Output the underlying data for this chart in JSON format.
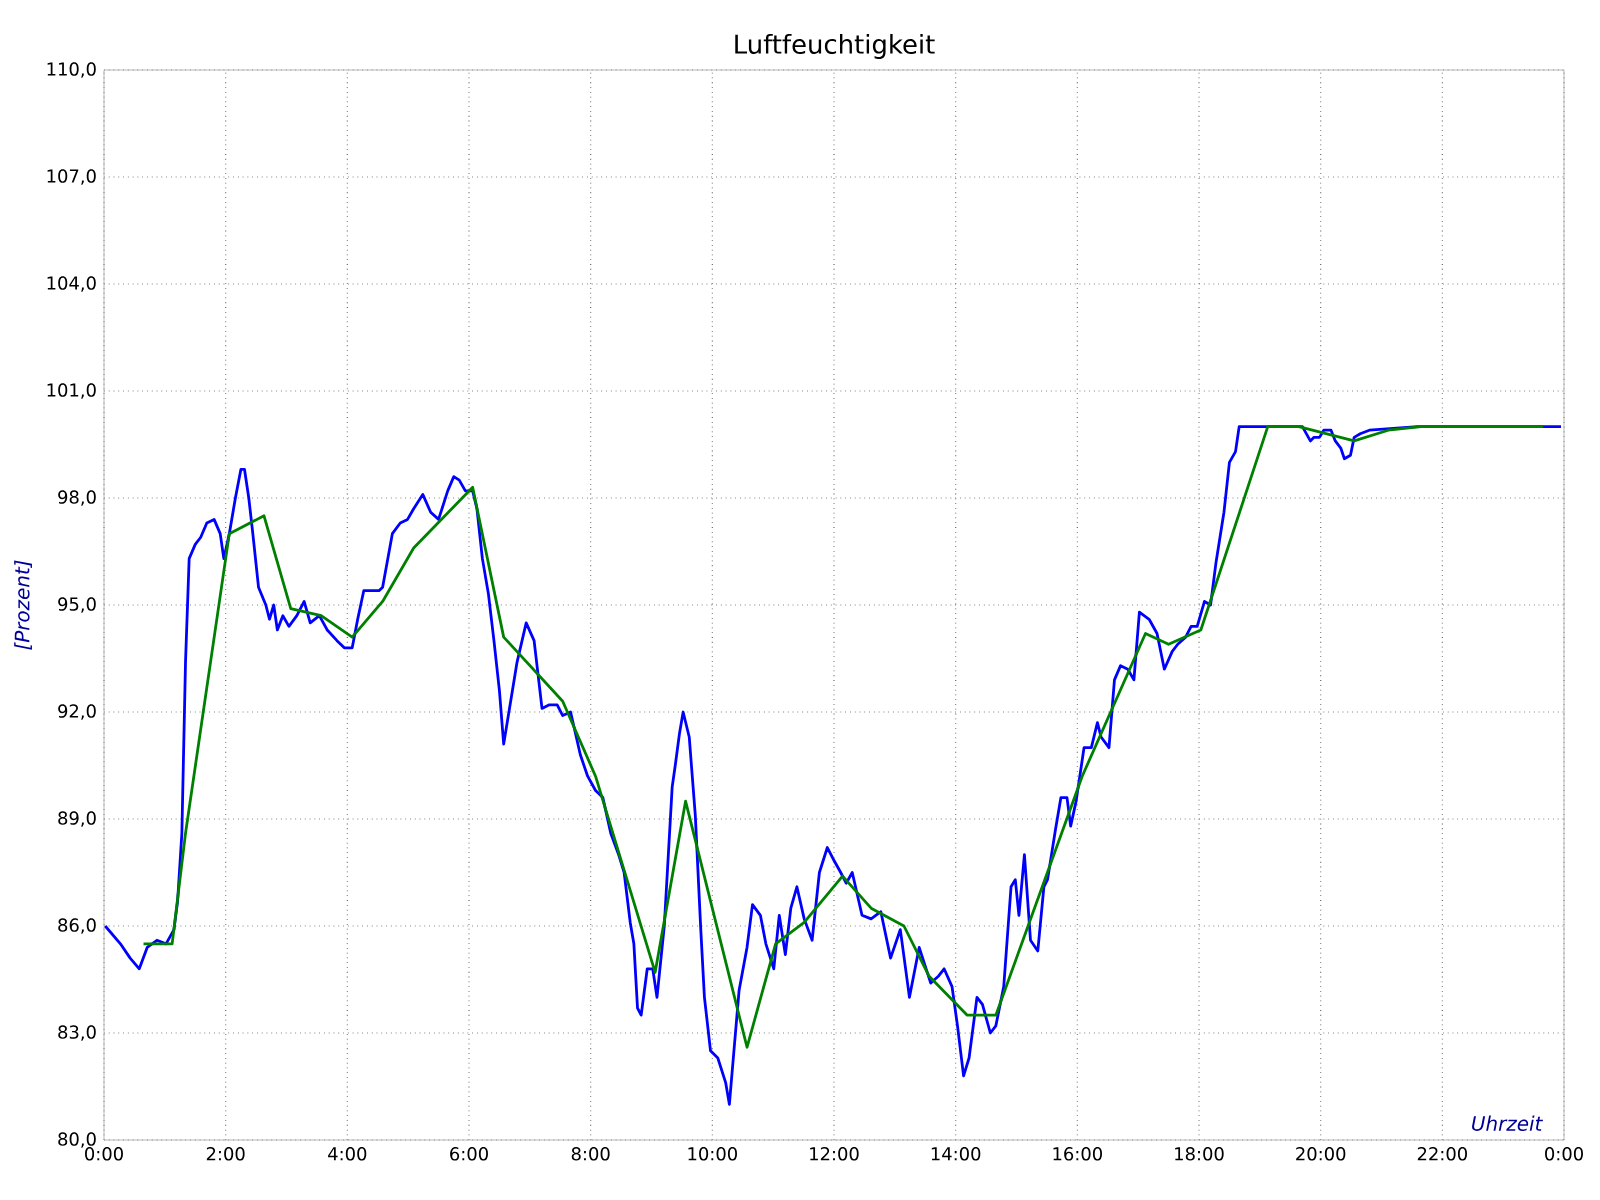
{
  "chart_data": {
    "type": "line",
    "title": "Luftfeuchtigkeit",
    "xlabel": "Uhrzeit",
    "ylabel": "[Prozent]",
    "xlim": [
      0,
      24
    ],
    "ylim": [
      80,
      110
    ],
    "xticks": [
      {
        "value": 0,
        "label": "0:00"
      },
      {
        "value": 2,
        "label": "2:00"
      },
      {
        "value": 4,
        "label": "4:00"
      },
      {
        "value": 6,
        "label": "6:00"
      },
      {
        "value": 8,
        "label": "8:00"
      },
      {
        "value": 10,
        "label": "10:00"
      },
      {
        "value": 12,
        "label": "12:00"
      },
      {
        "value": 14,
        "label": "14:00"
      },
      {
        "value": 16,
        "label": "16:00"
      },
      {
        "value": 18,
        "label": "18:00"
      },
      {
        "value": 20,
        "label": "20:00"
      },
      {
        "value": 22,
        "label": "22:00"
      },
      {
        "value": 24,
        "label": "0:00"
      }
    ],
    "yticks": [
      {
        "value": 80,
        "label": "80,0"
      },
      {
        "value": 83,
        "label": "83,0"
      },
      {
        "value": 86,
        "label": "86,0"
      },
      {
        "value": 89,
        "label": "89,0"
      },
      {
        "value": 92,
        "label": "92,0"
      },
      {
        "value": 95,
        "label": "95,0"
      },
      {
        "value": 98,
        "label": "98,0"
      },
      {
        "value": 101,
        "label": "101,0"
      },
      {
        "value": 104,
        "label": "104,0"
      },
      {
        "value": 107,
        "label": "107,0"
      },
      {
        "value": 110,
        "label": "110,0"
      }
    ],
    "grid": true,
    "marker": "none",
    "line_style": "solid",
    "series": [
      {
        "color": "#0000ff",
        "x": [
          0.02,
          0.27,
          0.43,
          0.58,
          0.71,
          0.87,
          1.02,
          1.15,
          1.21,
          1.28,
          1.34,
          1.4,
          1.5,
          1.59,
          1.69,
          1.81,
          1.91,
          1.97,
          2.06,
          2.16,
          2.25,
          2.31,
          2.38,
          2.44,
          2.54,
          2.66,
          2.72,
          2.79,
          2.85,
          2.94,
          3.04,
          3.17,
          3.29,
          3.39,
          3.54,
          3.67,
          3.83,
          3.95,
          4.08,
          4.17,
          4.27,
          4.39,
          4.52,
          4.58,
          4.74,
          4.87,
          4.99,
          5.09,
          5.24,
          5.37,
          5.5,
          5.65,
          5.75,
          5.84,
          5.94,
          6.06,
          6.13,
          6.22,
          6.32,
          6.41,
          6.5,
          6.57,
          6.79,
          6.94,
          7.07,
          7.2,
          7.32,
          7.45,
          7.54,
          7.67,
          7.83,
          7.95,
          8.08,
          8.2,
          8.33,
          8.46,
          8.55,
          8.65,
          8.71,
          8.77,
          8.83,
          8.93,
          9.02,
          9.09,
          9.21,
          9.34,
          9.39,
          9.46,
          9.52,
          9.62,
          9.72,
          9.81,
          9.87,
          9.97,
          10.09,
          10.22,
          10.28,
          10.35,
          10.44,
          10.57,
          10.66,
          10.79,
          10.88,
          11.01,
          11.1,
          11.2,
          11.29,
          11.39,
          11.51,
          11.64,
          11.76,
          11.89,
          11.98,
          12.11,
          12.2,
          12.3,
          12.46,
          12.61,
          12.77,
          12.93,
          13.09,
          13.24,
          13.4,
          13.59,
          13.72,
          13.81,
          13.94,
          14.03,
          14.13,
          14.22,
          14.35,
          14.44,
          14.57,
          14.66,
          14.79,
          14.91,
          14.98,
          15.04,
          15.13,
          15.23,
          15.35,
          15.45,
          15.51,
          15.64,
          15.73,
          15.83,
          15.89,
          15.98,
          16.11,
          16.23,
          16.33,
          16.39,
          16.52,
          16.61,
          16.71,
          16.83,
          16.93,
          17.02,
          17.18,
          17.31,
          17.43,
          17.56,
          17.65,
          17.78,
          17.87,
          17.97,
          18.09,
          18.19,
          18.28,
          18.41,
          18.5,
          18.6,
          18.66,
          19.7,
          19.83,
          19.89,
          19.98,
          20.05,
          20.17,
          20.24,
          20.33,
          20.39,
          20.49,
          20.55,
          20.65,
          20.8,
          21.59,
          23.95
        ],
        "values": [
          86.0,
          85.5,
          85.1,
          84.8,
          85.4,
          85.6,
          85.5,
          85.9,
          86.7,
          88.6,
          93.4,
          96.3,
          96.7,
          96.9,
          97.3,
          97.4,
          97.0,
          96.3,
          97.0,
          98.0,
          98.8,
          98.8,
          98.0,
          97.1,
          95.5,
          95.0,
          94.6,
          95.0,
          94.3,
          94.7,
          94.4,
          94.7,
          95.1,
          94.5,
          94.7,
          94.3,
          94.0,
          93.8,
          93.8,
          94.6,
          95.4,
          95.4,
          95.4,
          95.5,
          97.0,
          97.3,
          97.4,
          97.7,
          98.1,
          97.6,
          97.4,
          98.2,
          98.6,
          98.5,
          98.2,
          98.2,
          97.7,
          96.3,
          95.3,
          94.0,
          92.6,
          91.1,
          93.4,
          94.5,
          94.0,
          92.1,
          92.2,
          92.2,
          91.9,
          92.0,
          90.8,
          90.2,
          89.8,
          89.6,
          88.6,
          88.0,
          87.5,
          86.1,
          85.5,
          83.7,
          83.5,
          84.8,
          84.8,
          84.0,
          86.0,
          89.9,
          90.5,
          91.4,
          92.0,
          91.3,
          89.1,
          85.9,
          84.0,
          82.5,
          82.3,
          81.6,
          81.0,
          82.4,
          84.2,
          85.4,
          86.6,
          86.3,
          85.5,
          84.8,
          86.3,
          85.2,
          86.5,
          87.1,
          86.2,
          85.6,
          87.5,
          88.2,
          87.9,
          87.5,
          87.2,
          87.5,
          86.3,
          86.2,
          86.4,
          85.1,
          85.9,
          84.0,
          85.4,
          84.4,
          84.6,
          84.8,
          84.3,
          83.2,
          81.8,
          82.3,
          84.0,
          83.8,
          83.0,
          83.2,
          84.3,
          87.1,
          87.3,
          86.3,
          88.0,
          85.6,
          85.3,
          87.1,
          87.3,
          88.7,
          89.6,
          89.6,
          88.8,
          89.5,
          91.0,
          91.0,
          91.7,
          91.3,
          91.0,
          92.9,
          93.3,
          93.2,
          92.9,
          94.8,
          94.6,
          94.2,
          93.2,
          93.7,
          93.9,
          94.1,
          94.4,
          94.4,
          95.1,
          95.0,
          96.2,
          97.6,
          99.0,
          99.3,
          100.0,
          100.0,
          99.6,
          99.7,
          99.7,
          99.9,
          99.9,
          99.6,
          99.4,
          99.1,
          99.2,
          99.7,
          99.8,
          99.9,
          100.0,
          100.0
        ]
      },
      {
        "color": "#008000",
        "x": [
          0.65,
          1.12,
          1.34,
          2.06,
          2.63,
          3.07,
          3.57,
          4.08,
          4.58,
          5.09,
          6.06,
          6.57,
          7.54,
          8.08,
          9.06,
          9.56,
          10.57,
          11.04,
          11.51,
          12.14,
          12.61,
          13.15,
          13.56,
          14.19,
          14.66,
          16.08,
          17.12,
          17.5,
          18.03,
          19.13,
          19.64,
          20.55,
          21.11,
          21.65,
          23.66
        ],
        "values": [
          85.5,
          85.5,
          88.6,
          97.0,
          97.5,
          94.9,
          94.7,
          94.1,
          95.1,
          96.6,
          98.3,
          94.1,
          92.3,
          90.2,
          84.7,
          89.5,
          82.6,
          85.5,
          86.1,
          87.4,
          86.5,
          86.0,
          84.6,
          83.5,
          83.5,
          90.2,
          94.2,
          93.9,
          94.3,
          100.0,
          100.0,
          99.6,
          99.9,
          100.0,
          100.0
        ]
      }
    ]
  }
}
